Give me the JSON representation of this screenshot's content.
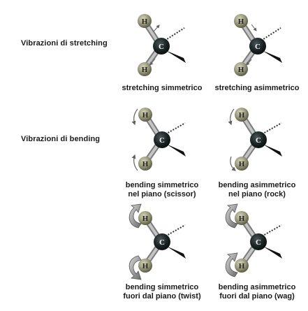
{
  "sections": {
    "stretching": "Vibrazioni di stretching",
    "bending": "Vibrazioni di bending"
  },
  "captions": {
    "stretch_sym": "stretching simmetrico",
    "stretch_asym": "stretching asimmetrico",
    "bend_sym_line1": "bending simmetrico",
    "bend_sym_line2": "nel piano (scissor)",
    "bend_asym_line1": "bending asimmetrico",
    "bend_asym_line2": "nel piano (rock)",
    "twist_line1": "bending simmetrico",
    "twist_line2": "fuori dal piano (twist)",
    "wag_line1": "bending asimmetrico",
    "wag_line2": "fuori dal piano (wag)"
  },
  "atoms": {
    "hydrogen": "H",
    "carbon": "C"
  },
  "colors": {
    "hydrogen": "#9a9a7a",
    "carbon": "#1f2a2a",
    "bond": "#a7a7a7",
    "arrow": "#707070"
  }
}
